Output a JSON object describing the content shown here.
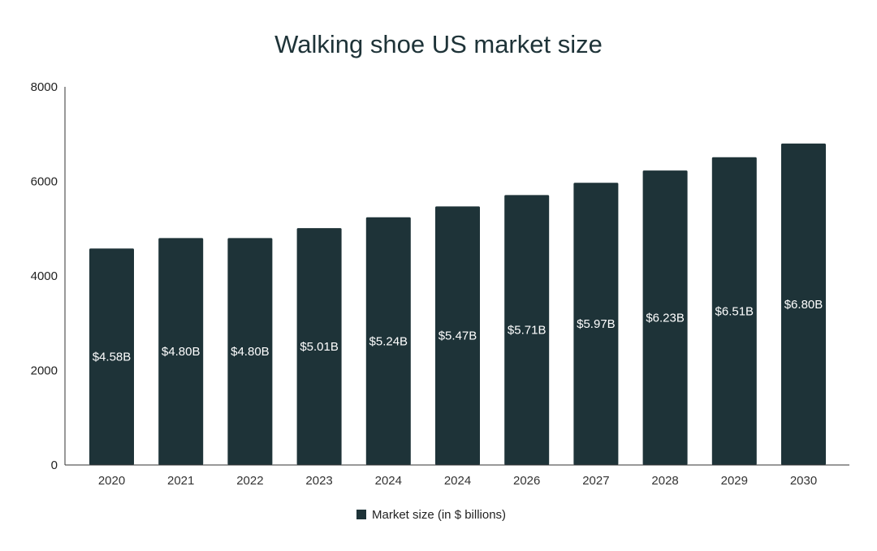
{
  "chart_data": {
    "type": "bar",
    "title": "Walking shoe US market size",
    "xlabel": "",
    "ylabel": "",
    "ylim": [
      0,
      8000
    ],
    "yticks": [
      "0",
      "2000",
      "4000",
      "6000",
      "8000"
    ],
    "categories": [
      "2020",
      "2021",
      "2022",
      "2023",
      "2024",
      "2024",
      "2026",
      "2027",
      "2028",
      "2029",
      "2030"
    ],
    "series": [
      {
        "name": "Market size (in $ billions)",
        "color": "#1e3338",
        "values": [
          4580,
          4800,
          4800,
          5010,
          5240,
          5470,
          5710,
          5970,
          6230,
          6510,
          6800
        ],
        "data_labels": [
          "$4.58B",
          "$4.80B",
          "$4.80B",
          "$5.01B",
          "$5.24B",
          "$5.47B",
          "$5.71B",
          "$5.97B",
          "$6.23B",
          "$6.51B",
          "$6.80B"
        ]
      }
    ],
    "grid": false,
    "legend_position": "bottom"
  }
}
